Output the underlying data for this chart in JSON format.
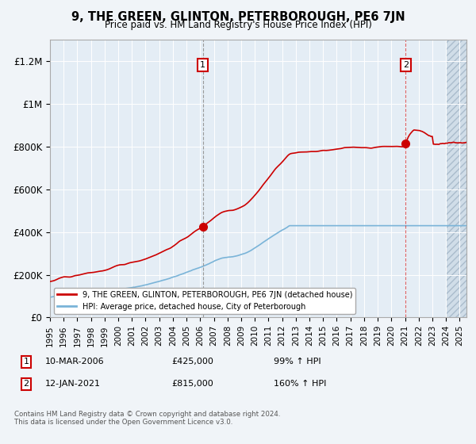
{
  "title": "9, THE GREEN, GLINTON, PETERBOROUGH, PE6 7JN",
  "subtitle": "Price paid vs. HM Land Registry's House Price Index (HPI)",
  "background_color": "#f0f4f8",
  "plot_bg_color": "#e4edf5",
  "ylim": [
    0,
    1300000
  ],
  "yticks": [
    0,
    200000,
    400000,
    600000,
    800000,
    1000000,
    1200000
  ],
  "ytick_labels": [
    "£0",
    "£200K",
    "£400K",
    "£600K",
    "£800K",
    "£1M",
    "£1.2M"
  ],
  "xlim_start": 1995.0,
  "xlim_end": 2025.5,
  "hpi_line_color": "#7ab4d8",
  "price_line_color": "#cc0000",
  "sale1_x": 2006.19,
  "sale1_y": 425000,
  "sale2_x": 2021.04,
  "sale2_y": 815000,
  "annotation1": "1",
  "annotation2": "2",
  "legend_label1": "9, THE GREEN, GLINTON, PETERBOROUGH, PE6 7JN (detached house)",
  "legend_label2": "HPI: Average price, detached house, City of Peterborough",
  "copyright": "Contains HM Land Registry data © Crown copyright and database right 2024.\nThis data is licensed under the Open Government Licence v3.0."
}
